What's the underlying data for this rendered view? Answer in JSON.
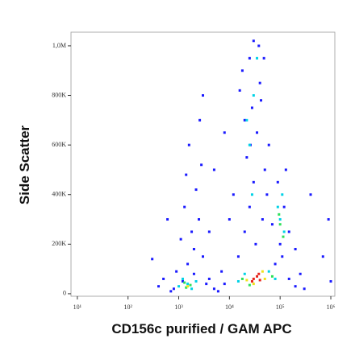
{
  "chart_data": {
    "type": "scatter",
    "xlabel": "CD156c purified / GAM APC",
    "ylabel": "Side Scatter",
    "xscale": "log",
    "xlim": [
      7.5,
      1200000
    ],
    "ylim": [
      -10000,
      1055000
    ],
    "xticks": [
      {
        "value": 10,
        "label": "10¹"
      },
      {
        "value": 100,
        "label": "10²"
      },
      {
        "value": 1000,
        "label": "10³"
      },
      {
        "value": 10000,
        "label": "10⁴"
      },
      {
        "value": 100000,
        "label": "10⁵"
      },
      {
        "value": 1000000,
        "label": "10⁶"
      }
    ],
    "yticks": [
      0,
      {
        "value": 200000,
        "label": "200K"
      },
      {
        "value": 400000,
        "label": "400K"
      },
      {
        "value": 600000,
        "label": "600K"
      },
      {
        "value": 800000,
        "label": "800K"
      },
      {
        "value": 1000000,
        "label": "1,0M"
      }
    ],
    "series": [
      {
        "color": "#1a1aff",
        "x": [
          800,
          1200,
          1500,
          2000,
          1800,
          2500,
          1300,
          2200,
          900,
          3000,
          1600,
          2800,
          1100,
          2000,
          700,
          3500,
          500,
          400,
          2600,
          1400,
          15000,
          20000,
          25000,
          30000,
          22000,
          35000,
          28000,
          40000,
          25000,
          30000,
          18000,
          45000,
          50000,
          12000,
          38000,
          20000,
          33000,
          26000,
          42000,
          16000,
          10000,
          60000,
          55000,
          48000,
          80000,
          100000,
          120000,
          90000,
          150000,
          70000,
          130000,
          110000,
          200000,
          5000,
          8000,
          6000,
          150000,
          200000,
          4000,
          7000,
          300000,
          250000,
          300,
          600,
          4000,
          5000,
          8000,
          700000,
          900000,
          1000000,
          400000,
          3000
        ],
        "y": [
          20000,
          50000,
          120000,
          180000,
          250000,
          300000,
          350000,
          420000,
          90000,
          150000,
          600000,
          520000,
          220000,
          80000,
          10000,
          40000,
          60000,
          30000,
          700000,
          480000,
          150000,
          250000,
          350000,
          450000,
          550000,
          650000,
          750000,
          850000,
          950000,
          1020000,
          900000,
          300000,
          500000,
          400000,
          1000000,
          700000,
          200000,
          600000,
          780000,
          820000,
          300000,
          600000,
          400000,
          950000,
          120000,
          200000,
          350000,
          450000,
          250000,
          280000,
          500000,
          150000,
          180000,
          20000,
          40000,
          10000,
          60000,
          30000,
          60000,
          90000,
          20000,
          80000,
          140000,
          300000,
          250000,
          500000,
          650000,
          150000,
          300000,
          50000,
          400000,
          800000
        ]
      },
      {
        "color": "#00d2e6",
        "x": [
          1500,
          1800,
          1200,
          1000,
          2200,
          25000,
          30000,
          28000,
          35000,
          22000,
          100000,
          120000,
          90000,
          110000,
          15000,
          60000,
          80000,
          20000
        ],
        "y": [
          40000,
          20000,
          60000,
          30000,
          50000,
          600000,
          800000,
          400000,
          950000,
          700000,
          300000,
          250000,
          350000,
          400000,
          50000,
          90000,
          60000,
          80000
        ]
      },
      {
        "color": "#2ee05a",
        "x": [
          1400,
          1700,
          1300,
          100000,
          95000,
          115000,
          18000,
          70000,
          25000
        ],
        "y": [
          25000,
          35000,
          45000,
          280000,
          320000,
          230000,
          60000,
          70000,
          35000
        ]
      },
      {
        "color": "#f0e21e",
        "x": [
          1500,
          22000,
          50000,
          45000,
          30000
        ],
        "y": [
          30000,
          55000,
          60000,
          90000,
          40000
        ]
      },
      {
        "color": "#e8231a",
        "x": [
          30000,
          35000,
          40000,
          28000,
          38000
        ],
        "y": [
          60000,
          70000,
          55000,
          50000,
          80000
        ]
      }
    ]
  }
}
